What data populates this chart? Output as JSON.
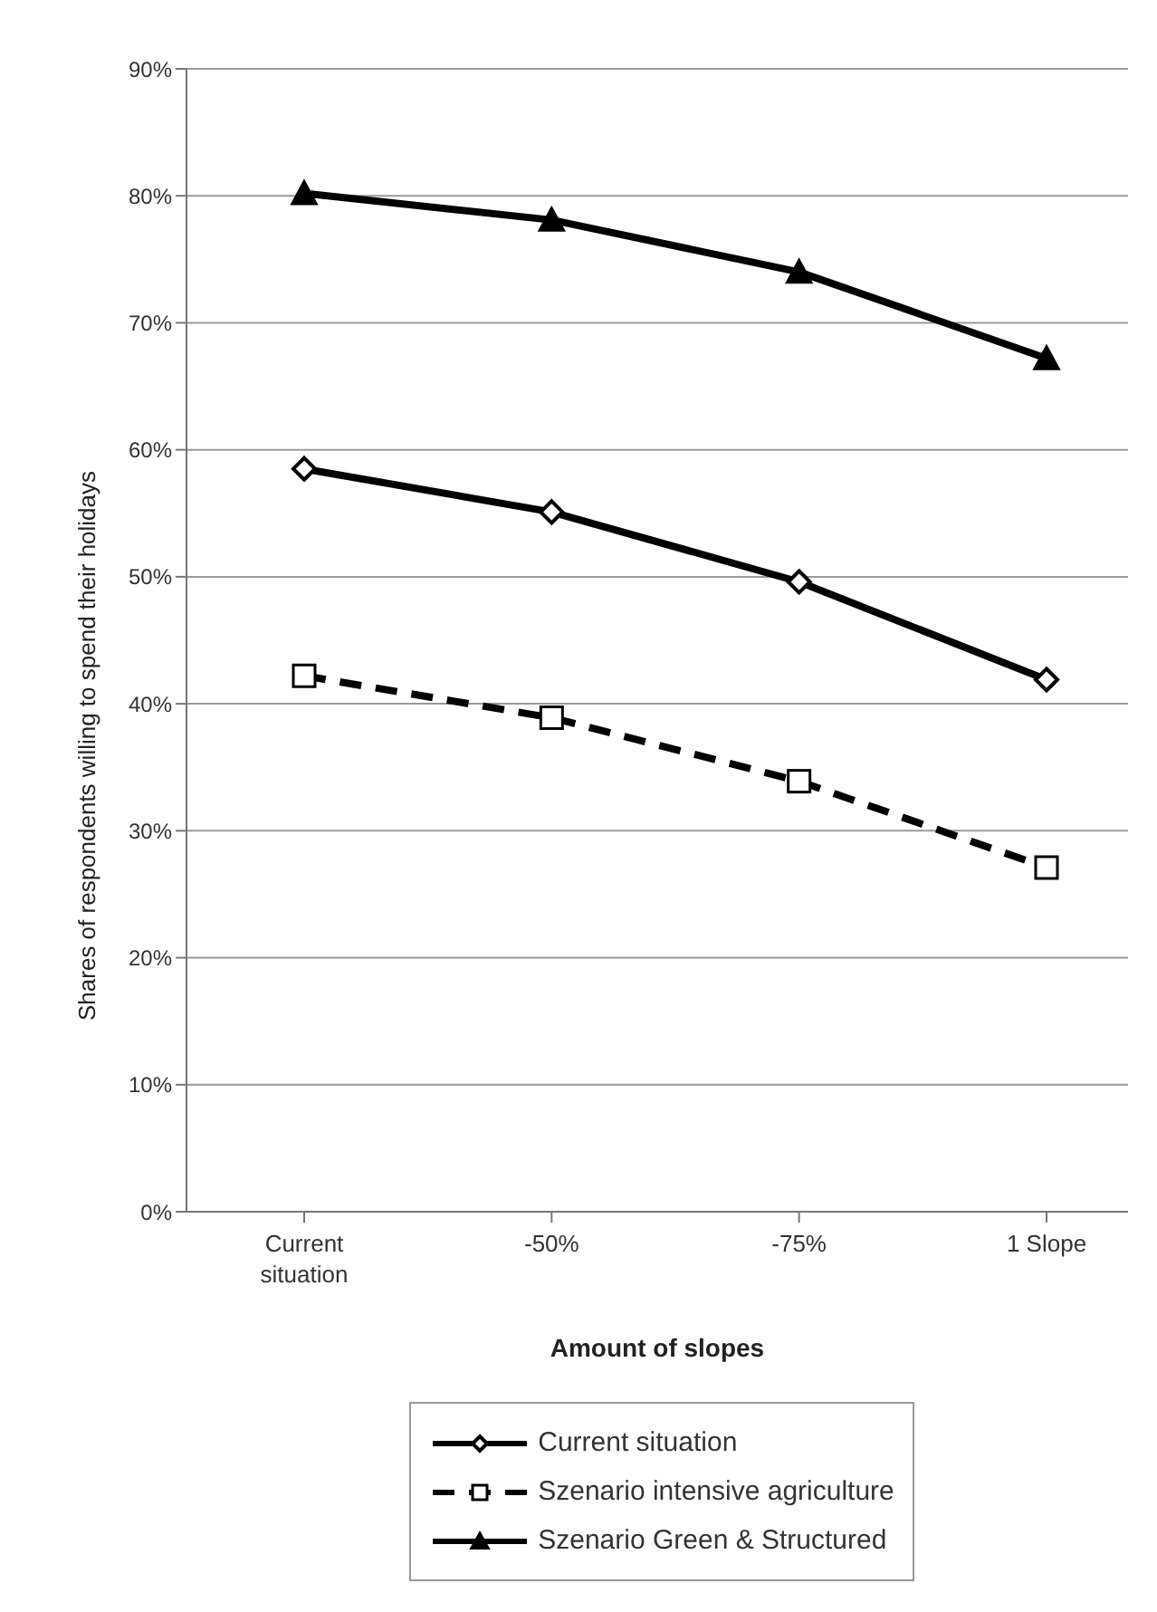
{
  "chart_data": {
    "type": "line",
    "xlabel": "Amount of slopes",
    "ylabel": "Shares of respondents willing to spend their holidays",
    "categories": [
      "Current situation",
      "-50%",
      "-75%",
      "1 Slope"
    ],
    "series": [
      {
        "name": "Current situation",
        "color": "#000000",
        "marker": "diamond",
        "line_style": "solid",
        "values": [
          58.5,
          55.1,
          49.6,
          41.9
        ]
      },
      {
        "name": "Szenario intensive agriculture",
        "color": "#000000",
        "marker": "square",
        "line_style": "dashed",
        "values": [
          42.2,
          38.9,
          33.9,
          27.1
        ]
      },
      {
        "name": "Szenario Green & Structured",
        "color": "#000000",
        "marker": "triangle",
        "line_style": "solid",
        "values": [
          80.2,
          78.1,
          74.0,
          67.2
        ]
      }
    ],
    "ylim": [
      0,
      90
    ],
    "yticks": [
      {
        "value": 0,
        "label": "0%"
      },
      {
        "value": 10,
        "label": "10%"
      },
      {
        "value": 20,
        "label": "20%"
      },
      {
        "value": 30,
        "label": "30%"
      },
      {
        "value": 40,
        "label": "40%"
      },
      {
        "value": 50,
        "label": "50%"
      },
      {
        "value": 60,
        "label": "60%"
      },
      {
        "value": 70,
        "label": "70%"
      },
      {
        "value": 80,
        "label": "80%"
      },
      {
        "value": 90,
        "label": "90%"
      }
    ],
    "grid": "y",
    "legend": "bottom"
  }
}
